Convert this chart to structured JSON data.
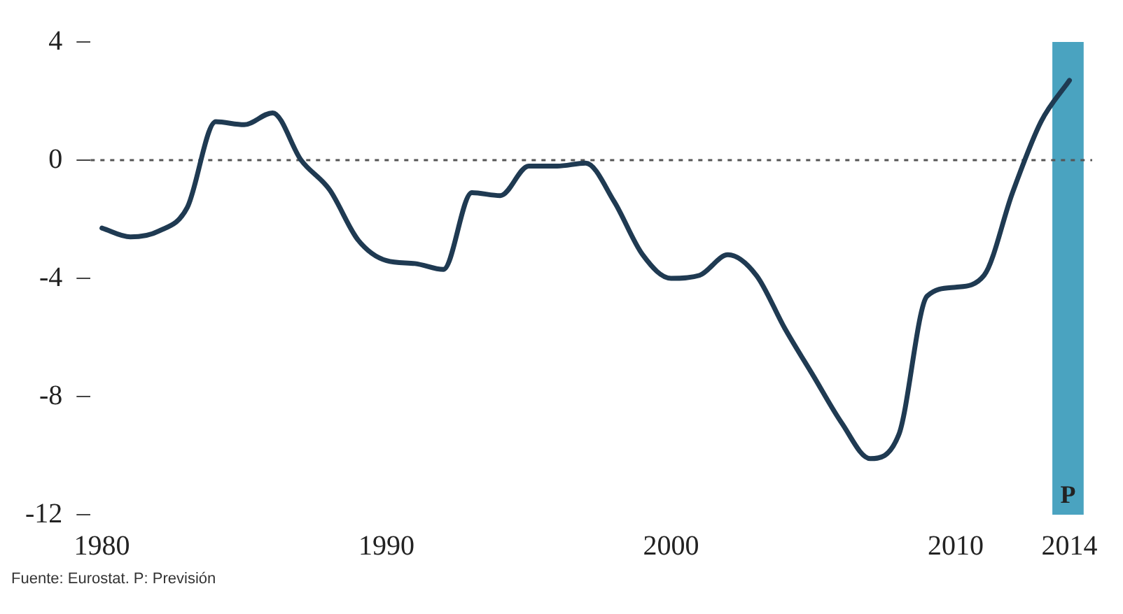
{
  "chart_data": {
    "type": "line",
    "x": [
      1980,
      1981,
      1982,
      1983,
      1984,
      1985,
      1986,
      1987,
      1988,
      1989,
      1990,
      1991,
      1992,
      1993,
      1994,
      1995,
      1996,
      1997,
      1998,
      1999,
      2000,
      2001,
      2002,
      2003,
      2004,
      2005,
      2006,
      2007,
      2008,
      2009,
      2010,
      2011,
      2012,
      2013,
      2014
    ],
    "series": [
      {
        "color": "#1f3a52",
        "values": [
          -2.3,
          -2.6,
          -2.4,
          -1.6,
          1.3,
          1.2,
          1.6,
          0,
          -1.0,
          -2.7,
          -3.4,
          -3.5,
          -3.7,
          -1.1,
          -1.2,
          -0.2,
          -0.2,
          -0.1,
          -1.4,
          -3.2,
          -4.0,
          -3.9,
          -3.2,
          -3.9,
          -5.7,
          -7.3,
          -8.9,
          -10.1,
          -9.3,
          -4.6,
          -4.3,
          -3.9,
          -1.1,
          1.3,
          2.7
        ]
      }
    ],
    "xlim": [
      1979.6,
      2014.8
    ],
    "ylim": [
      -12,
      4
    ],
    "xticks": [
      1980,
      1990,
      2000,
      2010,
      2014
    ],
    "yticks": [
      4,
      0,
      -4,
      -8,
      -12
    ],
    "ref_lines": [
      {
        "axis": "y",
        "value": 0,
        "line_style": "dotted",
        "color": "#555555"
      }
    ],
    "bands": [
      {
        "axis": "x",
        "from": 2013.4,
        "to": 2014.5,
        "label": "P",
        "color": "#4aa3c0"
      }
    ],
    "annotations": [
      "Fuente: Eurostat. P: Previsión"
    ],
    "grid": false,
    "legend": false,
    "marker": "none",
    "line_style": "solid"
  }
}
